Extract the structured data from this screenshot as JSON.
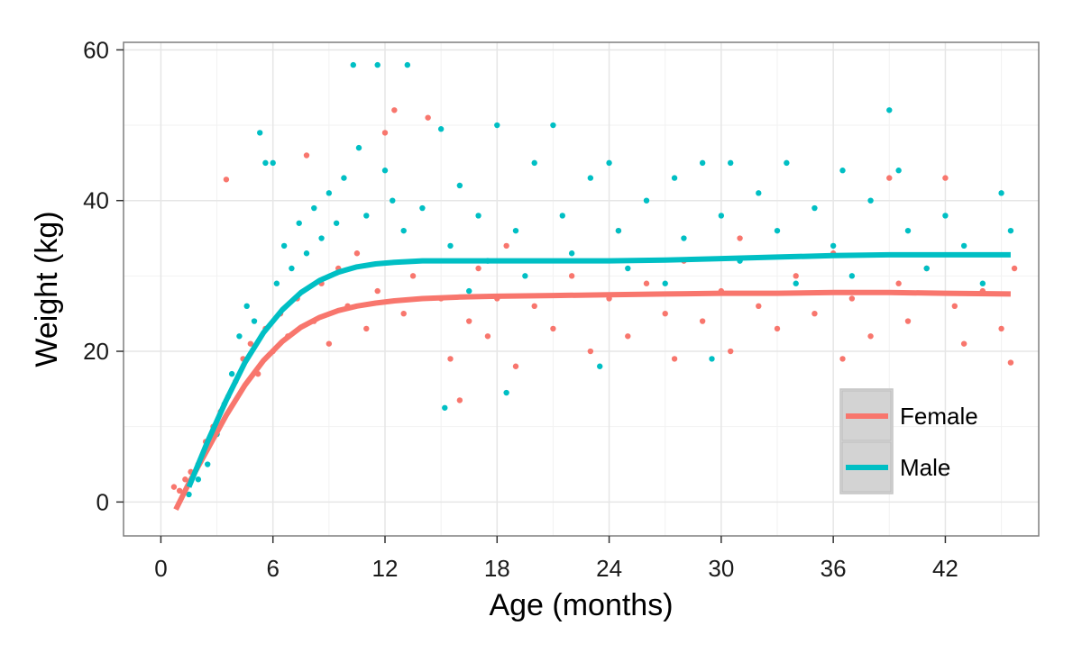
{
  "chart_data": {
    "type": "scatter",
    "title": "",
    "xlabel": "Age (months)",
    "ylabel": "Weight (kg)",
    "xlim": [
      -2,
      47
    ],
    "ylim": [
      -4.5,
      61
    ],
    "x_ticks": [
      0,
      6,
      12,
      18,
      24,
      30,
      36,
      42
    ],
    "y_ticks": [
      0,
      20,
      40,
      60
    ],
    "grid": true,
    "legend": {
      "position": "bottom-right"
    },
    "series": [
      {
        "name": "Female",
        "color": "#F8766D",
        "trend": [
          [
            0.8,
            -1
          ],
          [
            1.5,
            2.5
          ],
          [
            2.5,
            7
          ],
          [
            3.5,
            11.5
          ],
          [
            4.5,
            15.5
          ],
          [
            5.5,
            18.8
          ],
          [
            6.5,
            21.3
          ],
          [
            7.5,
            23.2
          ],
          [
            8.5,
            24.5
          ],
          [
            9.5,
            25.4
          ],
          [
            10.5,
            26
          ],
          [
            11.5,
            26.4
          ],
          [
            12.5,
            26.7
          ],
          [
            14,
            27
          ],
          [
            16,
            27.2
          ],
          [
            18,
            27.3
          ],
          [
            21,
            27.4
          ],
          [
            24,
            27.5
          ],
          [
            27,
            27.6
          ],
          [
            30,
            27.7
          ],
          [
            33,
            27.7
          ],
          [
            36,
            27.8
          ],
          [
            39,
            27.8
          ],
          [
            42,
            27.7
          ],
          [
            45.5,
            27.6
          ]
        ],
        "points": [
          [
            0.7,
            2
          ],
          [
            1,
            1.5
          ],
          [
            1.3,
            3
          ],
          [
            1.6,
            4
          ],
          [
            2,
            5
          ],
          [
            2.4,
            8
          ],
          [
            2.8,
            10
          ],
          [
            3.2,
            12
          ],
          [
            3.5,
            42.8
          ],
          [
            3.6,
            14
          ],
          [
            4,
            16
          ],
          [
            4.4,
            19
          ],
          [
            4.8,
            21
          ],
          [
            5.2,
            17
          ],
          [
            5.6,
            23
          ],
          [
            6,
            20
          ],
          [
            6.4,
            25
          ],
          [
            6.8,
            22
          ],
          [
            7.3,
            27
          ],
          [
            7.8,
            46
          ],
          [
            8.2,
            24
          ],
          [
            8.6,
            29
          ],
          [
            9,
            21
          ],
          [
            9.5,
            31
          ],
          [
            10,
            26
          ],
          [
            10.5,
            33
          ],
          [
            11,
            23
          ],
          [
            11.6,
            28
          ],
          [
            12,
            49
          ],
          [
            12.5,
            52
          ],
          [
            13,
            25
          ],
          [
            13.5,
            30
          ],
          [
            14.3,
            51
          ],
          [
            15,
            27
          ],
          [
            15.5,
            19
          ],
          [
            16,
            13.5
          ],
          [
            16.5,
            24
          ],
          [
            17,
            31
          ],
          [
            17.5,
            22
          ],
          [
            18,
            27
          ],
          [
            18.5,
            34
          ],
          [
            19,
            18
          ],
          [
            20,
            26
          ],
          [
            21,
            23
          ],
          [
            22,
            30
          ],
          [
            23,
            20
          ],
          [
            24,
            27
          ],
          [
            24.5,
            36
          ],
          [
            25,
            22
          ],
          [
            26,
            29
          ],
          [
            27,
            25
          ],
          [
            27.5,
            19
          ],
          [
            28,
            32
          ],
          [
            29,
            24
          ],
          [
            30,
            28
          ],
          [
            30.5,
            20
          ],
          [
            31,
            35
          ],
          [
            32,
            26
          ],
          [
            33,
            23
          ],
          [
            34,
            30
          ],
          [
            35,
            25
          ],
          [
            36,
            33
          ],
          [
            36.5,
            19
          ],
          [
            37,
            27
          ],
          [
            38,
            22
          ],
          [
            39,
            43
          ],
          [
            39.5,
            29
          ],
          [
            40,
            24
          ],
          [
            41,
            31
          ],
          [
            42,
            43
          ],
          [
            42.5,
            26
          ],
          [
            43,
            21
          ],
          [
            44,
            28
          ],
          [
            45,
            23
          ],
          [
            45.5,
            18.5
          ],
          [
            45.7,
            31
          ]
        ]
      },
      {
        "name": "Male",
        "color": "#00BFC4",
        "trend": [
          [
            1.5,
            2
          ],
          [
            2.5,
            8
          ],
          [
            3.5,
            13.5
          ],
          [
            4.5,
            18.5
          ],
          [
            5.5,
            22.5
          ],
          [
            6.5,
            25.5
          ],
          [
            7.5,
            27.8
          ],
          [
            8.5,
            29.4
          ],
          [
            9.5,
            30.5
          ],
          [
            10.5,
            31.2
          ],
          [
            11.5,
            31.6
          ],
          [
            12.5,
            31.8
          ],
          [
            14,
            32
          ],
          [
            16,
            32
          ],
          [
            18,
            32
          ],
          [
            21,
            32
          ],
          [
            24,
            32
          ],
          [
            27,
            32.1
          ],
          [
            30,
            32.3
          ],
          [
            33,
            32.5
          ],
          [
            36,
            32.7
          ],
          [
            39,
            32.8
          ],
          [
            42,
            32.8
          ],
          [
            45.5,
            32.8
          ]
        ],
        "points": [
          [
            1.5,
            1
          ],
          [
            2,
            3
          ],
          [
            2.5,
            5
          ],
          [
            3,
            9
          ],
          [
            3.4,
            13
          ],
          [
            3.8,
            17
          ],
          [
            4.2,
            22
          ],
          [
            4.6,
            26
          ],
          [
            5,
            24
          ],
          [
            5.3,
            49
          ],
          [
            5.6,
            45
          ],
          [
            6,
            45
          ],
          [
            6.2,
            29
          ],
          [
            6.6,
            34
          ],
          [
            7,
            31
          ],
          [
            7.4,
            37
          ],
          [
            7.8,
            33
          ],
          [
            8.2,
            39
          ],
          [
            8.6,
            35
          ],
          [
            9,
            41
          ],
          [
            9.4,
            37
          ],
          [
            9.8,
            43
          ],
          [
            10.3,
            58
          ],
          [
            10.6,
            47
          ],
          [
            11,
            38
          ],
          [
            11.6,
            58
          ],
          [
            12,
            44
          ],
          [
            12.4,
            40
          ],
          [
            13,
            36
          ],
          [
            13.2,
            58
          ],
          [
            14,
            39
          ],
          [
            15,
            49.5
          ],
          [
            15.2,
            12.5
          ],
          [
            15.5,
            34
          ],
          [
            16,
            42
          ],
          [
            16.5,
            28
          ],
          [
            17,
            38
          ],
          [
            17.5,
            32
          ],
          [
            18,
            50
          ],
          [
            18.5,
            14.5
          ],
          [
            19,
            36
          ],
          [
            19.5,
            30
          ],
          [
            20,
            45
          ],
          [
            21,
            50
          ],
          [
            21.5,
            38
          ],
          [
            22,
            33
          ],
          [
            23,
            43
          ],
          [
            23.5,
            18
          ],
          [
            24,
            45
          ],
          [
            24.5,
            36
          ],
          [
            25,
            31
          ],
          [
            26,
            40
          ],
          [
            27,
            29
          ],
          [
            27.5,
            43
          ],
          [
            28,
            35
          ],
          [
            29,
            45
          ],
          [
            29.5,
            19
          ],
          [
            30,
            38
          ],
          [
            30.5,
            45
          ],
          [
            31,
            32
          ],
          [
            32,
            41
          ],
          [
            33,
            36
          ],
          [
            33.5,
            45
          ],
          [
            34,
            29
          ],
          [
            35,
            39
          ],
          [
            36,
            34
          ],
          [
            36.5,
            44
          ],
          [
            37,
            30
          ],
          [
            38,
            40
          ],
          [
            39,
            52
          ],
          [
            39.5,
            44
          ],
          [
            40,
            36
          ],
          [
            41,
            31
          ],
          [
            42,
            38
          ],
          [
            43,
            34
          ],
          [
            44,
            29
          ],
          [
            45,
            41
          ],
          [
            45.5,
            36
          ]
        ]
      }
    ]
  }
}
